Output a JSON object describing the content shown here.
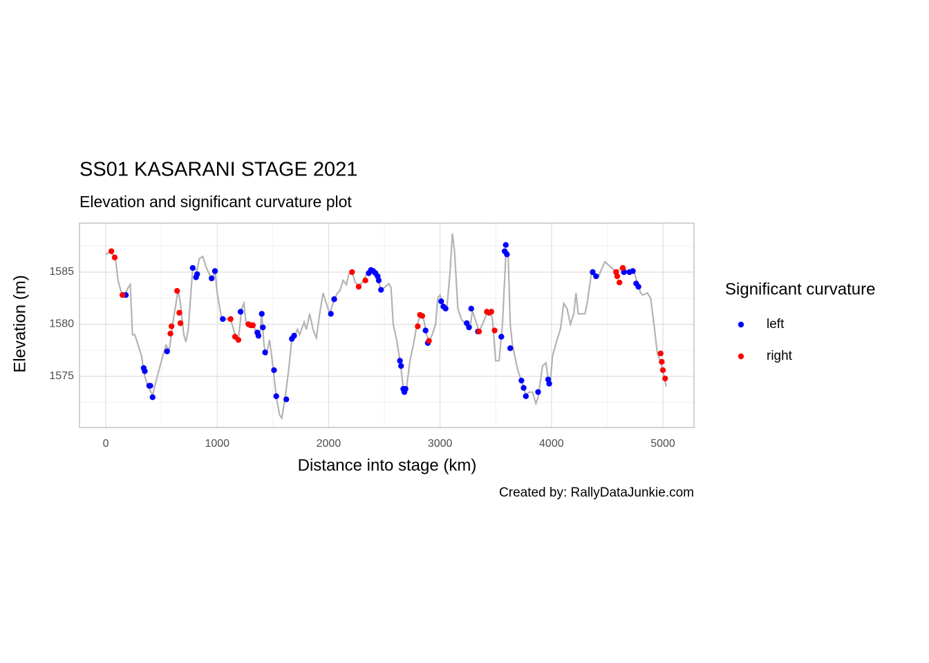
{
  "chart_data": {
    "type": "line",
    "title": "SS01 KASARANI STAGE 2021",
    "subtitle": "Elevation and significant curvature plot",
    "x_label": "Distance into stage (km)",
    "y_label": "Elevation (m)",
    "caption": "Created by: RallyDataJunkie.com",
    "legend_title": "Significant curvature",
    "legend_position": "right",
    "grid": true,
    "xlim": [
      -236,
      5279
    ],
    "ylim": [
      1570.1,
      1589.7
    ],
    "xticks": [
      0,
      1000,
      2000,
      3000,
      4000,
      5000
    ],
    "yticks": [
      1575,
      1580,
      1585
    ],
    "x_minor_ticks": [
      500,
      1500,
      2500,
      3500,
      4500
    ],
    "y_minor_ticks": [
      1572.5,
      1577.5,
      1582.5,
      1587.5
    ],
    "line": {
      "color": "#b3b3b3",
      "x": [
        0,
        50,
        90,
        110,
        140,
        170,
        200,
        220,
        240,
        260,
        290,
        320,
        350,
        380,
        420,
        450,
        500,
        540,
        570,
        600,
        630,
        650,
        670,
        700,
        720,
        740,
        780,
        820,
        840,
        870,
        900,
        950,
        980,
        1000,
        1040,
        1080,
        1120,
        1160,
        1190,
        1220,
        1240,
        1260,
        1290,
        1320,
        1360,
        1380,
        1400,
        1420,
        1440,
        1470,
        1500,
        1530,
        1560,
        1580,
        1610,
        1640,
        1670,
        1700,
        1720,
        1740,
        1780,
        1800,
        1830,
        1860,
        1890,
        1920,
        1950,
        1980,
        2010,
        2050,
        2080,
        2100,
        2130,
        2160,
        2180,
        2210,
        2240,
        2270,
        2300,
        2340,
        2380,
        2420,
        2450,
        2470,
        2500,
        2540,
        2560,
        2580,
        2610,
        2640,
        2670,
        2680,
        2700,
        2730,
        2760,
        2790,
        2820,
        2850,
        2880,
        2900,
        2930,
        2960,
        2980,
        3000,
        3030,
        3060,
        3090,
        3110,
        3130,
        3160,
        3190,
        3230,
        3270,
        3290,
        3330,
        3350,
        3380,
        3420,
        3450,
        3470,
        3500,
        3530,
        3560,
        3590,
        3610,
        3630,
        3650,
        3680,
        3700,
        3740,
        3770,
        3800,
        3830,
        3860,
        3880,
        3920,
        3950,
        3970,
        3990,
        4010,
        4050,
        4080,
        4110,
        4140,
        4170,
        4200,
        4220,
        4240,
        4270,
        4300,
        4320,
        4360,
        4390,
        4420,
        4450,
        4480,
        4500,
        4530,
        4580,
        4620,
        4650,
        4700,
        4740,
        4770,
        4800,
        4820,
        4860,
        4890,
        4920,
        4950,
        4980,
        5000,
        5030
      ],
      "y": [
        1586.7,
        1587,
        1586,
        1584.2,
        1583,
        1582.8,
        1583.5,
        1583.8,
        1579,
        1579,
        1578,
        1577,
        1575,
        1574,
        1573.2,
        1574.5,
        1576.5,
        1578,
        1577.5,
        1580,
        1582,
        1583.3,
        1582,
        1579,
        1578.3,
        1579.5,
        1585.3,
        1585.2,
        1586.3,
        1586.5,
        1585.5,
        1584.3,
        1585.1,
        1583,
        1580.5,
        1580.5,
        1580.5,
        1579,
        1578.5,
        1581.5,
        1582,
        1580,
        1580,
        1580,
        1579,
        1578.7,
        1581,
        1578,
        1577,
        1578.5,
        1576,
        1573,
        1571.3,
        1571,
        1573,
        1575.5,
        1578.6,
        1579,
        1579.5,
        1579,
        1580.2,
        1579.5,
        1581,
        1579.5,
        1578.7,
        1581,
        1583,
        1582,
        1581,
        1582.4,
        1583,
        1583.2,
        1584.2,
        1583.8,
        1584.8,
        1585,
        1584,
        1583.6,
        1584,
        1584.8,
        1585.2,
        1585,
        1584,
        1583.3,
        1583.5,
        1583.9,
        1583.5,
        1580,
        1578.5,
        1576.5,
        1574,
        1573.5,
        1574,
        1576.5,
        1578,
        1579.8,
        1580.8,
        1580.6,
        1579,
        1578.3,
        1579,
        1580,
        1582.5,
        1582.8,
        1581.8,
        1581.4,
        1585,
        1588.7,
        1587,
        1581.5,
        1580.5,
        1580,
        1579.7,
        1581.3,
        1580,
        1579.3,
        1580,
        1581,
        1581.2,
        1580.5,
        1576.5,
        1576.5,
        1580,
        1586.5,
        1587,
        1580,
        1578,
        1576.5,
        1575.5,
        1574.3,
        1573.2,
        1573.5,
        1573.5,
        1572.4,
        1573,
        1576,
        1576.3,
        1574.8,
        1574.5,
        1577,
        1578.5,
        1579.5,
        1582,
        1581.5,
        1580,
        1581,
        1583,
        1581,
        1581,
        1581,
        1582,
        1585,
        1584.5,
        1584.5,
        1585.3,
        1586,
        1585.8,
        1585.5,
        1585,
        1585.3,
        1585.3,
        1585,
        1585.1,
        1584,
        1583,
        1582.8,
        1583,
        1582.5,
        1580,
        1577.2,
        1576.4,
        1575.5,
        1574
      ]
    },
    "series": [
      {
        "name": "left",
        "color": "#0000ff",
        "x": [
          180,
          340,
          350,
          390,
          400,
          420,
          550,
          780,
          810,
          820,
          950,
          980,
          1050,
          1210,
          1360,
          1370,
          1400,
          1410,
          1430,
          1510,
          1530,
          1620,
          1670,
          1690,
          2020,
          2050,
          2360,
          2380,
          2400,
          2420,
          2440,
          2450,
          2470,
          2640,
          2650,
          2670,
          2680,
          2690,
          2870,
          2890,
          3010,
          3030,
          3050,
          3240,
          3260,
          3280,
          3340,
          3550,
          3580,
          3590,
          3600,
          3630,
          3730,
          3750,
          3770,
          3880,
          3970,
          3980,
          4370,
          4400,
          4650,
          4700,
          4730,
          4760,
          4780
        ],
        "y": [
          1582.8,
          1575.8,
          1575.5,
          1574.1,
          1574.1,
          1573,
          1577.4,
          1585.4,
          1584.5,
          1584.8,
          1584.4,
          1585.1,
          1580.5,
          1581.2,
          1579.2,
          1578.9,
          1581,
          1579.7,
          1577.3,
          1575.6,
          1573.1,
          1572.8,
          1578.6,
          1578.9,
          1581,
          1582.4,
          1584.9,
          1585.2,
          1585.1,
          1584.9,
          1584.6,
          1584.2,
          1583.3,
          1576.5,
          1576,
          1573.8,
          1573.5,
          1573.8,
          1579.4,
          1578.2,
          1582.2,
          1581.7,
          1581.5,
          1580.1,
          1579.7,
          1581.5,
          1579.3,
          1578.8,
          1587,
          1587.6,
          1586.7,
          1577.7,
          1574.6,
          1573.9,
          1573.1,
          1573.5,
          1574.7,
          1574.3,
          1585,
          1584.6,
          1585,
          1585,
          1585.1,
          1583.9,
          1583.6
        ]
      },
      {
        "name": "right",
        "color": "#ff0000",
        "x": [
          50,
          80,
          150,
          580,
          590,
          640,
          660,
          670,
          1120,
          1160,
          1190,
          1280,
          1300,
          1320,
          2210,
          2270,
          2330,
          2800,
          2820,
          2840,
          2900,
          3350,
          3420,
          3440,
          3460,
          3490,
          4580,
          4590,
          4610,
          4640,
          4980,
          4990,
          5000,
          5020
        ],
        "y": [
          1587,
          1586.4,
          1582.8,
          1579.1,
          1579.8,
          1583.2,
          1581.1,
          1580.1,
          1580.5,
          1578.8,
          1578.5,
          1580,
          1579.9,
          1579.9,
          1585,
          1583.6,
          1584.2,
          1579.8,
          1580.9,
          1580.8,
          1578.4,
          1579.3,
          1581.2,
          1581.1,
          1581.2,
          1579.4,
          1585,
          1584.6,
          1584,
          1585.4,
          1577.2,
          1576.4,
          1575.6,
          1574.8
        ]
      }
    ]
  }
}
